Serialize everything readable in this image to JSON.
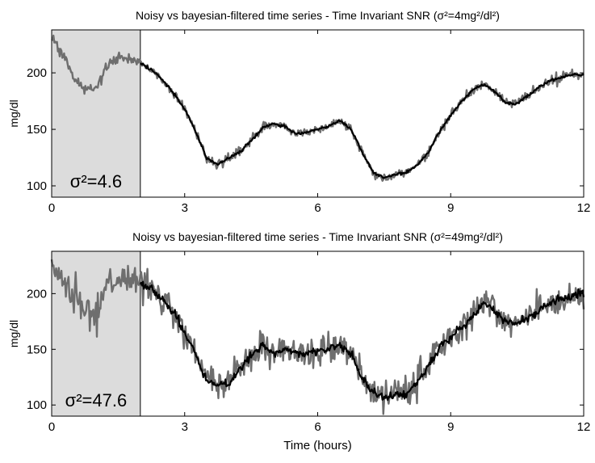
{
  "chart_data": [
    {
      "type": "line",
      "title": "Noisy vs bayesian-filtered time series - Time Invariant SNR",
      "title_sigma_label": "σ²=4mg²/dl²",
      "xlabel": "",
      "ylabel": "mg/dl",
      "xlim": [
        0,
        12
      ],
      "ylim": [
        90,
        238
      ],
      "xticks": [
        0,
        3,
        6,
        9,
        12
      ],
      "yticks": [
        100,
        150,
        200
      ],
      "grid": false,
      "shaded_region": {
        "x_range": [
          0,
          2
        ],
        "annotation": "σ²=4.6"
      },
      "series": [
        {
          "color": "#6e6e6e",
          "noise_sd": 2.1,
          "x": [
            0,
            0.25,
            0.5,
            0.75,
            1.0,
            1.25,
            1.5,
            1.75,
            2.0,
            2.25,
            2.5,
            2.75,
            3.0,
            3.25,
            3.5,
            3.75,
            4.0,
            4.25,
            4.5,
            4.75,
            5.0,
            5.25,
            5.5,
            5.75,
            6.0,
            6.25,
            6.5,
            6.75,
            7.0,
            7.25,
            7.5,
            7.75,
            8.0,
            8.25,
            8.5,
            8.75,
            9.0,
            9.25,
            9.5,
            9.75,
            10.0,
            10.25,
            10.5,
            10.75,
            11.0,
            11.25,
            11.5,
            11.75,
            12.0
          ],
          "y": [
            232,
            215,
            196,
            184,
            187,
            205,
            214,
            213,
            208,
            203,
            194,
            182,
            168,
            148,
            124,
            119,
            125,
            130,
            140,
            151,
            155,
            153,
            146,
            148,
            150,
            153,
            158,
            150,
            130,
            112,
            107,
            110,
            112,
            118,
            130,
            148,
            162,
            175,
            185,
            190,
            183,
            173,
            173,
            180,
            188,
            193,
            196,
            199,
            198
          ]
        },
        {
          "color": "#000000",
          "noise_sd": 0.6,
          "x": [
            2.0,
            2.25,
            2.5,
            2.75,
            3.0,
            3.25,
            3.5,
            3.75,
            4.0,
            4.25,
            4.5,
            4.75,
            5.0,
            5.25,
            5.5,
            5.75,
            6.0,
            6.25,
            6.5,
            6.75,
            7.0,
            7.25,
            7.5,
            7.75,
            8.0,
            8.25,
            8.5,
            8.75,
            9.0,
            9.25,
            9.5,
            9.75,
            10.0,
            10.25,
            10.5,
            10.75,
            11.0,
            11.25,
            11.5,
            11.75,
            12.0
          ],
          "y": [
            208,
            203,
            194,
            182,
            168,
            148,
            124,
            119,
            125,
            130,
            140,
            151,
            155,
            153,
            146,
            148,
            150,
            153,
            158,
            150,
            130,
            112,
            107,
            110,
            112,
            118,
            130,
            148,
            162,
            175,
            185,
            190,
            183,
            173,
            173,
            180,
            188,
            193,
            196,
            199,
            198
          ]
        }
      ]
    },
    {
      "type": "line",
      "title": "Noisy vs bayesian-filtered time series - Time Invariant SNR",
      "title_sigma_label": "σ²=49mg²/dl²",
      "xlabel": "Time (hours)",
      "ylabel": "mg/dl",
      "xlim": [
        0,
        12
      ],
      "ylim": [
        90,
        238
      ],
      "xticks": [
        0,
        3,
        6,
        9,
        12
      ],
      "yticks": [
        100,
        150,
        200
      ],
      "grid": false,
      "shaded_region": {
        "x_range": [
          0,
          2
        ],
        "annotation": "σ²=47.6"
      },
      "series": [
        {
          "color": "#6e6e6e",
          "noise_sd": 6.8,
          "x": [
            0,
            0.25,
            0.5,
            0.75,
            1.0,
            1.25,
            1.5,
            1.75,
            2.0,
            2.25,
            2.5,
            2.75,
            3.0,
            3.25,
            3.5,
            3.75,
            4.0,
            4.25,
            4.5,
            4.75,
            5.0,
            5.25,
            5.5,
            5.75,
            6.0,
            6.25,
            6.5,
            6.75,
            7.0,
            7.25,
            7.5,
            7.75,
            8.0,
            8.25,
            8.5,
            8.75,
            9.0,
            9.25,
            9.5,
            9.75,
            10.0,
            10.25,
            10.5,
            10.75,
            11.0,
            11.25,
            11.5,
            11.75,
            12.0
          ],
          "y": [
            228,
            210,
            198,
            182,
            180,
            208,
            213,
            213,
            208,
            205,
            195,
            183,
            165,
            145,
            122,
            118,
            120,
            132,
            145,
            155,
            145,
            150,
            148,
            147,
            148,
            150,
            155,
            145,
            125,
            112,
            106,
            108,
            110,
            120,
            135,
            152,
            160,
            170,
            180,
            192,
            185,
            175,
            173,
            178,
            185,
            192,
            195,
            198,
            200
          ]
        },
        {
          "color": "#000000",
          "noise_sd": 1.8,
          "x": [
            2.0,
            2.25,
            2.5,
            2.75,
            3.0,
            3.25,
            3.5,
            3.75,
            4.0,
            4.25,
            4.5,
            4.75,
            5.0,
            5.25,
            5.5,
            5.75,
            6.0,
            6.25,
            6.5,
            6.75,
            7.0,
            7.25,
            7.5,
            7.75,
            8.0,
            8.25,
            8.5,
            8.75,
            9.0,
            9.25,
            9.5,
            9.75,
            10.0,
            10.25,
            10.5,
            10.75,
            11.0,
            11.25,
            11.5,
            11.75,
            12.0
          ],
          "y": [
            208,
            205,
            195,
            183,
            165,
            145,
            122,
            118,
            120,
            132,
            145,
            155,
            145,
            150,
            148,
            147,
            148,
            150,
            155,
            145,
            125,
            112,
            106,
            108,
            110,
            120,
            135,
            152,
            160,
            170,
            180,
            192,
            185,
            175,
            173,
            178,
            185,
            192,
            195,
            198,
            200
          ]
        }
      ]
    }
  ]
}
